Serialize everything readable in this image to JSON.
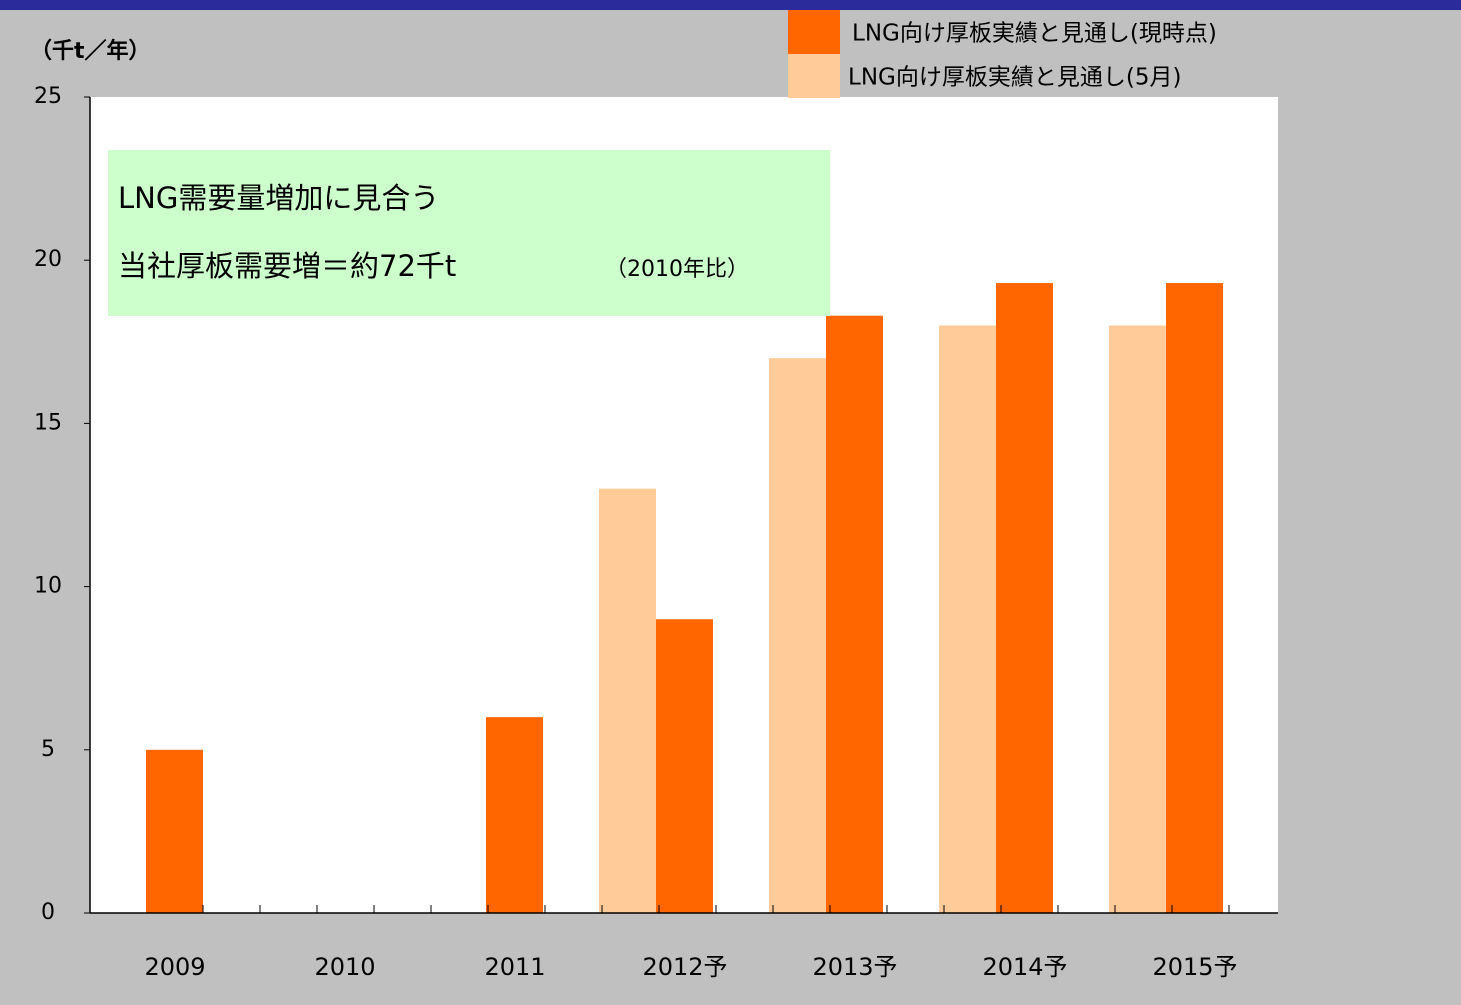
{
  "chart_data": {
    "type": "bar",
    "y_label": "（千t／年）",
    "categories": [
      "2009",
      "2010",
      "2011",
      "2012予",
      "2013予",
      "2014予",
      "2015予"
    ],
    "series": [
      {
        "name": "LNG向け厚板実績と見通し(現時点)",
        "color": "#ff6600",
        "values": [
          5,
          null,
          6,
          9,
          18.3,
          19.3,
          19.3
        ]
      },
      {
        "name": "LNG向け厚板実績と見通し(5月)",
        "color": "#ffcc99",
        "values": [
          null,
          null,
          null,
          13,
          17,
          18,
          18
        ]
      }
    ],
    "ylim": [
      0,
      25
    ],
    "yticks": [
      0,
      5,
      10,
      15,
      20,
      25
    ],
    "annotations": [
      "LNG需要量増加に見合う",
      "当社厚板需要増＝約72千t",
      "（2010年比）"
    ],
    "legend": "top-right"
  }
}
